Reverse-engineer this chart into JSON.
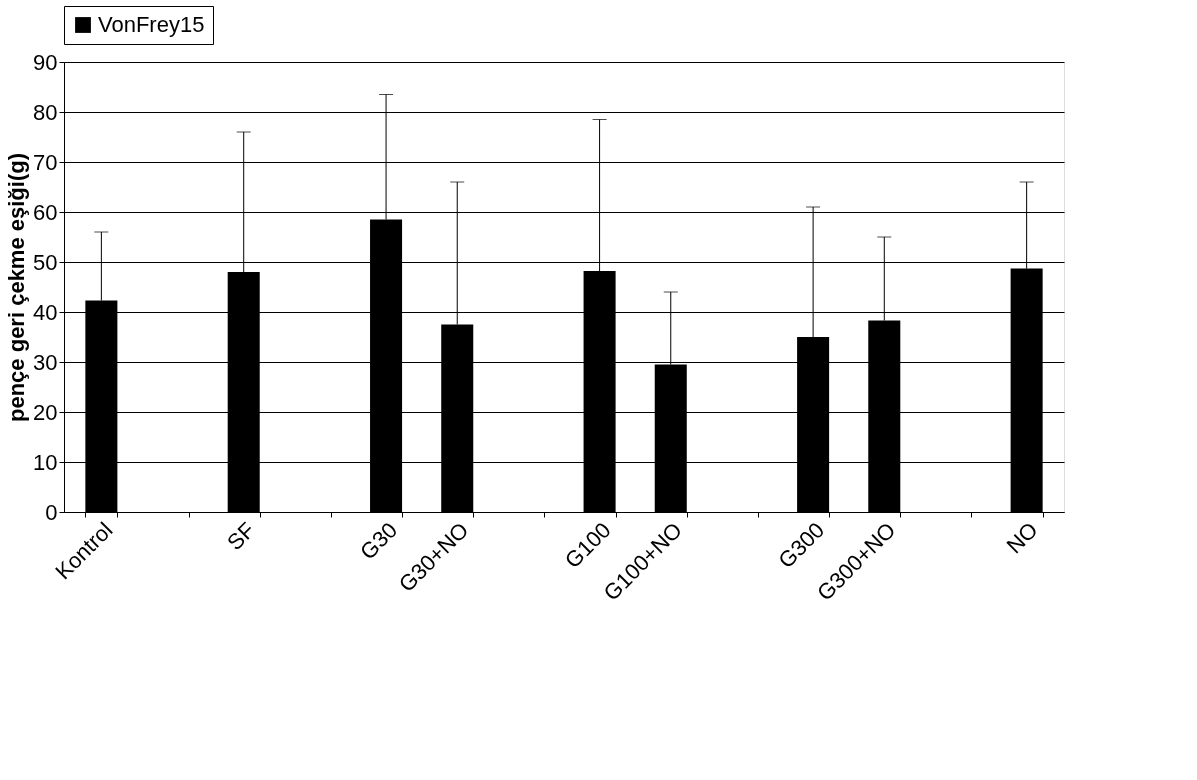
{
  "chart_data": {
    "type": "bar",
    "ylabel": "pençe geri çekme eşiği(g)",
    "categories": [
      "Kontrol",
      null,
      "SF",
      null,
      "G30",
      "G30+NO",
      null,
      "G100",
      "G100+NO",
      null,
      "G300",
      "G300+NO",
      null,
      "NO"
    ],
    "series": [
      {
        "name": "VonFrey15",
        "color": "#000000",
        "values": [
          42.3,
          null,
          48,
          null,
          58.5,
          37.5,
          null,
          48.2,
          29.5,
          null,
          35,
          38.3,
          null,
          48.7
        ],
        "errors": [
          [
            42.3,
            56
          ],
          null,
          [
            48,
            76
          ],
          null,
          [
            58.5,
            83.5
          ],
          [
            37.5,
            66
          ],
          null,
          [
            48.2,
            78.5
          ],
          [
            29.5,
            44
          ],
          null,
          [
            35,
            61
          ],
          [
            38.3,
            55
          ],
          null,
          [
            48.7,
            66
          ]
        ]
      }
    ],
    "ylim": [
      0,
      90
    ],
    "yticks": [
      0,
      10,
      20,
      30,
      40,
      50,
      60,
      70,
      80,
      90
    ],
    "grid": "y",
    "legend": "top"
  }
}
